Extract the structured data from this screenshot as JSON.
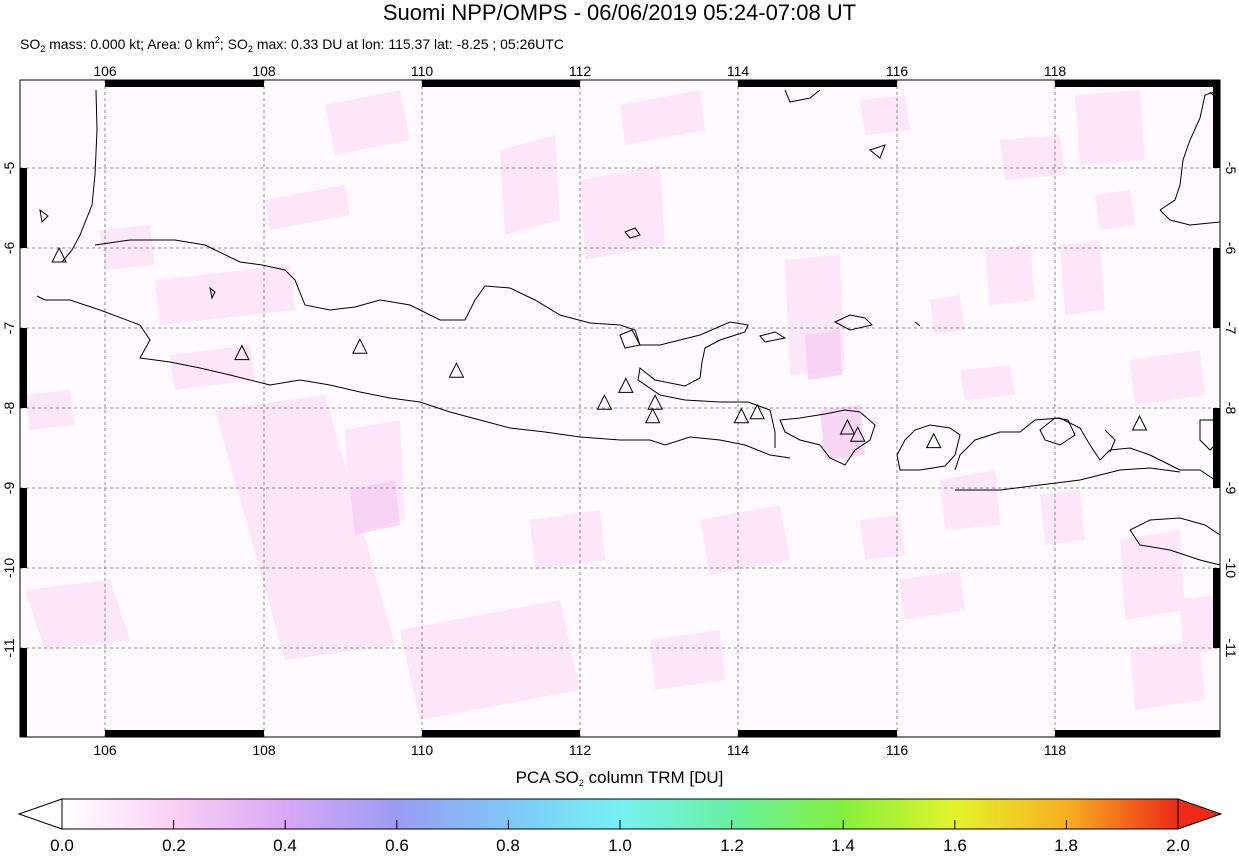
{
  "title": "Suomi NPP/OMPS - 06/06/2019 05:24-07:08 UT",
  "subtitle": {
    "mass_label": "SO",
    "mass_text": " mass: 0.000 kt; Area: 0 km",
    "area_sup": "2",
    "max_prefix": "; SO",
    "max_text": " max: 0.33 DU at lon: 115.37 lat: -8.25 ; 05:26UTC",
    "sub2": "2"
  },
  "map": {
    "lon_ticks": [
      "106",
      "108",
      "110",
      "112",
      "114",
      "116",
      "118"
    ],
    "lat_ticks": [
      "-5",
      "-6",
      "-7",
      "-8",
      "-9",
      "-10",
      "-11"
    ],
    "volcano_marker": "triangle",
    "volcanoes": [
      {
        "lon": 105.42,
        "lat": -6.1
      },
      {
        "lon": 107.73,
        "lat": -7.32
      },
      {
        "lon": 109.22,
        "lat": -7.24
      },
      {
        "lon": 110.44,
        "lat": -7.54
      },
      {
        "lon": 112.31,
        "lat": -7.94
      },
      {
        "lon": 112.58,
        "lat": -7.73
      },
      {
        "lon": 112.95,
        "lat": -7.94
      },
      {
        "lon": 112.92,
        "lat": -8.11
      },
      {
        "lon": 114.04,
        "lat": -8.11
      },
      {
        "lon": 114.24,
        "lat": -8.06
      },
      {
        "lon": 115.38,
        "lat": -8.25
      },
      {
        "lon": 115.51,
        "lat": -8.34
      },
      {
        "lon": 116.47,
        "lat": -8.42
      },
      {
        "lon": 119.07,
        "lat": -8.2
      }
    ]
  },
  "colorbar": {
    "label_prefix": "PCA SO",
    "label_sub": "2",
    "label_suffix": " column TRM [DU]",
    "ticks": [
      "0.0",
      "0.2",
      "0.4",
      "0.6",
      "0.8",
      "1.0",
      "1.2",
      "1.4",
      "1.6",
      "1.8",
      "2.0"
    ],
    "range": [
      0.0,
      2.0
    ],
    "colors": [
      "#ffffff",
      "#f9d0f3",
      "#d8a8f5",
      "#9b9cf2",
      "#7fc6f6",
      "#78f1f3",
      "#68f0a2",
      "#85ef3f",
      "#e3f32a",
      "#f7b022",
      "#ec2a15"
    ]
  }
}
